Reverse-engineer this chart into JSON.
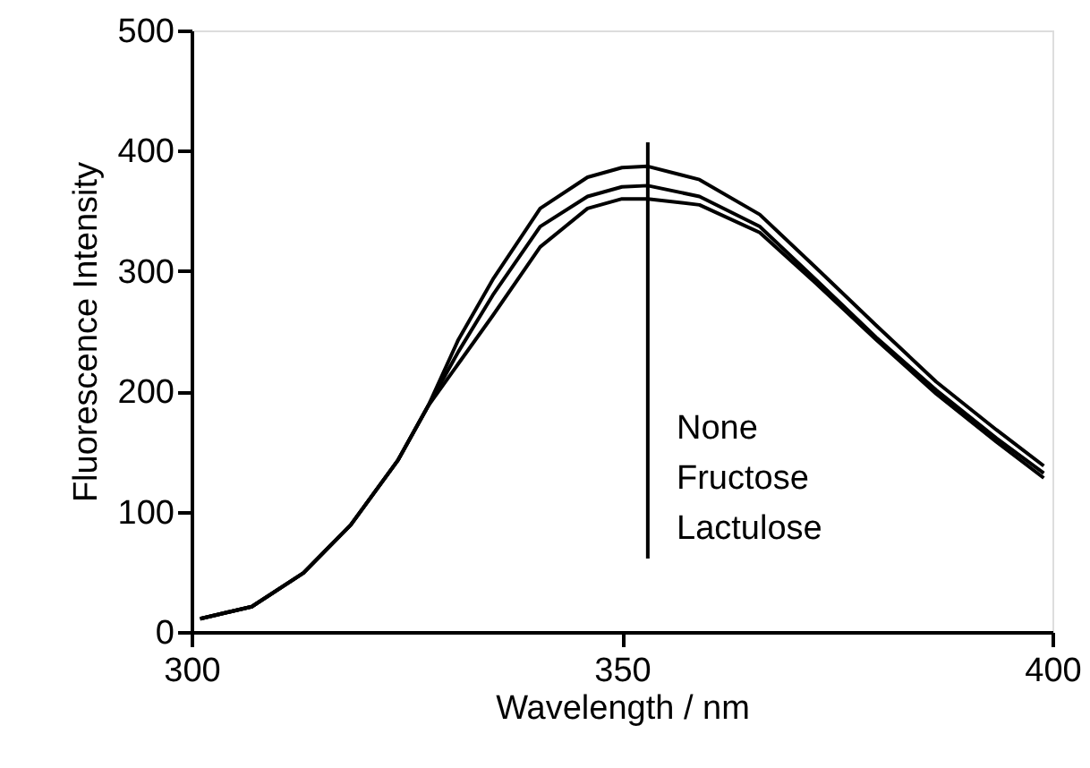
{
  "chart_data": {
    "type": "line",
    "xlabel": "Wavelength / nm",
    "ylabel": "Fluorescence Intensity",
    "xlim": [
      300,
      400
    ],
    "xticks": [
      300,
      350,
      400
    ],
    "ylim": [
      0,
      500
    ],
    "yticks": [
      0,
      100,
      200,
      300,
      400,
      500
    ],
    "grid": false,
    "marker": "none",
    "line_style": "solid",
    "annotations": [
      "None",
      "Fructose",
      "Lactulose"
    ],
    "x": [
      301,
      307,
      313,
      318.5,
      324,
      327.5,
      331,
      335,
      340.5,
      346,
      350,
      353,
      359,
      366,
      372.5,
      379.5,
      386.5,
      393.5,
      399
    ],
    "series": [
      {
        "color": "#000000",
        "values": [
          11,
          21,
          49,
          89,
          143,
          188,
          243,
          293,
          352,
          378,
          386,
          387,
          376,
          347,
          303,
          255,
          208,
          168,
          138
        ]
      },
      {
        "color": "#000000",
        "values": [
          11,
          21,
          49,
          89,
          143,
          188,
          233,
          280,
          337,
          362,
          370,
          371,
          362,
          337,
          293,
          245,
          201,
          161,
          132
        ]
      },
      {
        "color": "#000000",
        "values": [
          11,
          21,
          49,
          89,
          143,
          188,
          223,
          263,
          320,
          352,
          360,
          360,
          355,
          332,
          290,
          243,
          198,
          158,
          128
        ]
      },
      {
        "color": "#000000",
        "x": [
          353,
          353
        ],
        "values": [
          61,
          407
        ]
      }
    ]
  }
}
